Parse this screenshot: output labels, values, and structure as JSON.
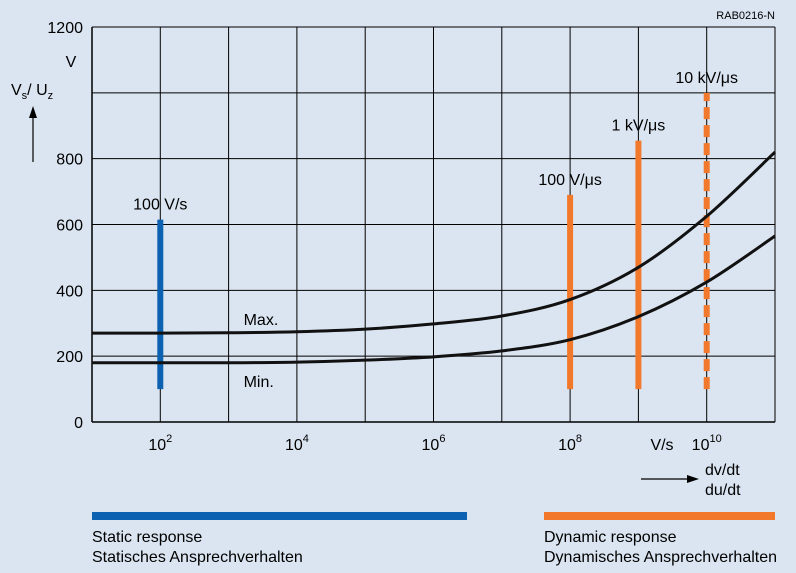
{
  "chart_data": {
    "type": "line",
    "code": "RAB0216-N",
    "x_scale": "log",
    "xlim": [
      10,
      100000000000
    ],
    "ylim": [
      0,
      1200
    ],
    "grid": true,
    "y_ticks": [
      "0",
      "200",
      "400",
      "600",
      "800",
      "",
      "1200"
    ],
    "y_tick_values": [
      0,
      200,
      400,
      600,
      800,
      1000,
      1200
    ],
    "y_unit": "V",
    "ylabel": {
      "base": "V",
      "sub1": "s",
      "sep": "/ U",
      "sub2": "z"
    },
    "x_ticks": [
      {
        "value": 100,
        "base": "10",
        "exp": "2"
      },
      {
        "value": 10000,
        "base": "10",
        "exp": "4"
      },
      {
        "value": 1000000,
        "base": "10",
        "exp": "6"
      },
      {
        "value": 100000000,
        "base": "10",
        "exp": "8"
      },
      {
        "value": 10000000000,
        "base": "10",
        "exp": "10"
      }
    ],
    "x_unit": "V/s",
    "xlabel": [
      "dv/dt",
      "du/dt"
    ],
    "series": [
      {
        "name": "Max.",
        "x": [
          10,
          100,
          1000,
          10000,
          100000,
          1000000,
          10000000,
          100000000,
          1000000000,
          10000000000,
          100000000000
        ],
        "y": [
          270,
          270,
          271,
          274,
          282,
          298,
          322,
          372,
          470,
          625,
          820
        ]
      },
      {
        "name": "Min.",
        "x": [
          10,
          100,
          1000,
          10000,
          100000,
          1000000,
          10000000,
          100000000,
          1000000000,
          10000000000,
          100000000000
        ],
        "y": [
          180,
          180,
          180,
          182,
          188,
          198,
          216,
          250,
          320,
          425,
          565
        ]
      }
    ],
    "rate_markers": [
      {
        "label": "100 V/s",
        "x": 100,
        "y_from": 100,
        "y_to": 615,
        "color": "#0c62b0",
        "style": "solid"
      },
      {
        "label": "100 V/μs",
        "x": 100000000,
        "y_from": 100,
        "y_to": 690,
        "color": "#f2792b",
        "style": "solid"
      },
      {
        "label": "1 kV/μs",
        "x": 1000000000,
        "y_from": 100,
        "y_to": 855,
        "color": "#f2792b",
        "style": "solid"
      },
      {
        "label": "10 kV/μs",
        "x": 10000000000,
        "y_from": 100,
        "y_to": 1000,
        "color": "#f2792b",
        "style": "dashed"
      }
    ]
  },
  "legend": {
    "static": {
      "color": "#0c62b0",
      "line1": "Static response",
      "line2": "Statisches Ansprechverhalten"
    },
    "dynamic": {
      "color": "#f2792b",
      "line1": "Dynamic response",
      "line2": "Dynamisches Ansprechverhalten"
    }
  }
}
